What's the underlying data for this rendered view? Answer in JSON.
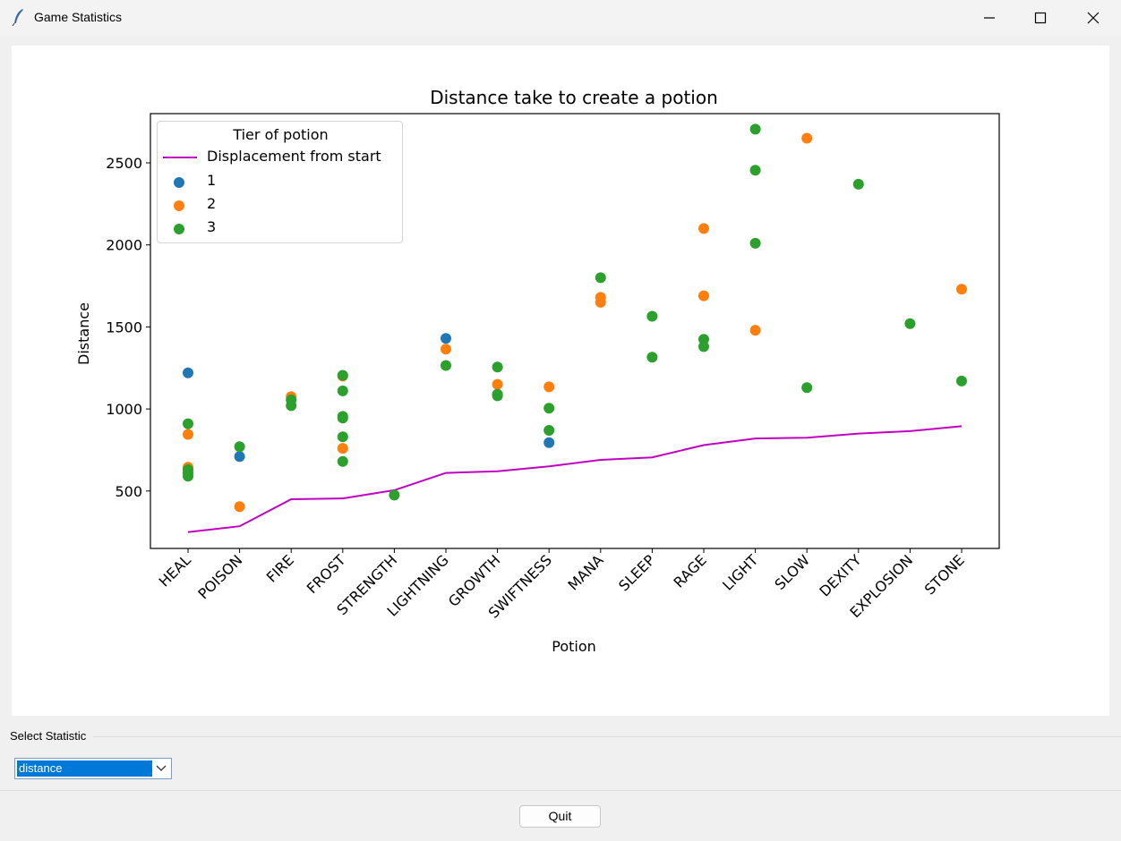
{
  "window": {
    "title": "Game Statistics",
    "minimize_icon": "minimize-icon",
    "maximize_icon": "maximize-icon",
    "close_icon": "close-icon"
  },
  "controls": {
    "select_label": "Select Statistic",
    "select_value": "distance",
    "quit_label": "Quit"
  },
  "chart_data": {
    "type": "scatter",
    "title": "Distance take to create a potion",
    "xlabel": "Potion",
    "ylabel": "Distance",
    "ylim": [
      150,
      2800
    ],
    "yticks": [
      500,
      1000,
      1500,
      2000,
      2500
    ],
    "categories": [
      "HEAL",
      "POISON",
      "FIRE",
      "FROST",
      "STRENGTH",
      "LIGHTNING",
      "GROWTH",
      "SWIFTNESS",
      "MANA",
      "SLEEP",
      "RAGE",
      "LIGHT",
      "SLOW",
      "DEXITY",
      "EXPLOSION",
      "STONE"
    ],
    "legend": {
      "title": "Tier of potion",
      "position": "upper-left",
      "line_label": "Displacement from start",
      "tier_labels": [
        "1",
        "2",
        "3"
      ]
    },
    "colors": {
      "line": "#c100c1",
      "tier1": "#1f77b4",
      "tier2": "#ff7f0e",
      "tier3": "#2ca02c"
    },
    "line_series": {
      "name": "Displacement from start",
      "values": [
        250,
        285,
        450,
        455,
        505,
        610,
        620,
        650,
        690,
        705,
        780,
        820,
        825,
        850,
        865,
        895
      ]
    },
    "series": [
      {
        "name": "1",
        "points": [
          [
            0,
            1220
          ],
          [
            1,
            710
          ],
          [
            5,
            1430
          ],
          [
            7,
            795
          ]
        ]
      },
      {
        "name": "2",
        "points": [
          [
            0,
            845
          ],
          [
            0,
            645
          ],
          [
            1,
            405
          ],
          [
            2,
            1075
          ],
          [
            3,
            1200
          ],
          [
            3,
            760
          ],
          [
            5,
            1365
          ],
          [
            6,
            1150
          ],
          [
            7,
            1135
          ],
          [
            8,
            1680
          ],
          [
            8,
            1650
          ],
          [
            10,
            2100
          ],
          [
            10,
            1690
          ],
          [
            11,
            1480
          ],
          [
            12,
            2650
          ],
          [
            15,
            1730
          ]
        ]
      },
      {
        "name": "3",
        "points": [
          [
            0,
            910
          ],
          [
            0,
            630
          ],
          [
            0,
            610
          ],
          [
            0,
            590
          ],
          [
            1,
            770
          ],
          [
            2,
            1055
          ],
          [
            2,
            1020
          ],
          [
            3,
            1205
          ],
          [
            3,
            1110
          ],
          [
            3,
            955
          ],
          [
            3,
            945
          ],
          [
            3,
            830
          ],
          [
            3,
            680
          ],
          [
            4,
            475
          ],
          [
            5,
            1265
          ],
          [
            6,
            1255
          ],
          [
            6,
            1090
          ],
          [
            6,
            1080
          ],
          [
            7,
            1005
          ],
          [
            7,
            870
          ],
          [
            8,
            1800
          ],
          [
            9,
            1565
          ],
          [
            9,
            1315
          ],
          [
            10,
            1425
          ],
          [
            10,
            1380
          ],
          [
            11,
            2705
          ],
          [
            11,
            2455
          ],
          [
            11,
            2010
          ],
          [
            12,
            1130
          ],
          [
            13,
            2370
          ],
          [
            14,
            1520
          ],
          [
            15,
            1170
          ]
        ]
      }
    ]
  }
}
